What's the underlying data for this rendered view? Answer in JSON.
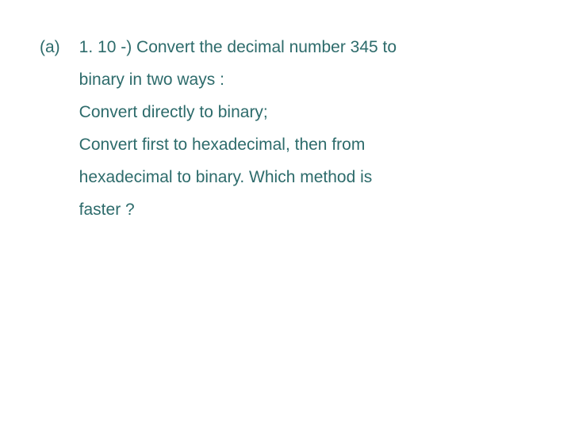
{
  "question": {
    "label": "(a)",
    "line1": "1. 10 -) Convert the decimal number 345 to",
    "line2": "binary in two ways :",
    "line3": "Convert directly to binary;",
    "line4": "Convert first to hexadecimal, then from",
    "line5": "hexadecimal to binary. Which method is",
    "line6": "faster ?"
  },
  "style": {
    "text_color": "#2d6b6b",
    "background_color": "#ffffff",
    "font_size": 21,
    "line_height": 1.95,
    "font_family": "Verdana, Geneva, sans-serif"
  }
}
